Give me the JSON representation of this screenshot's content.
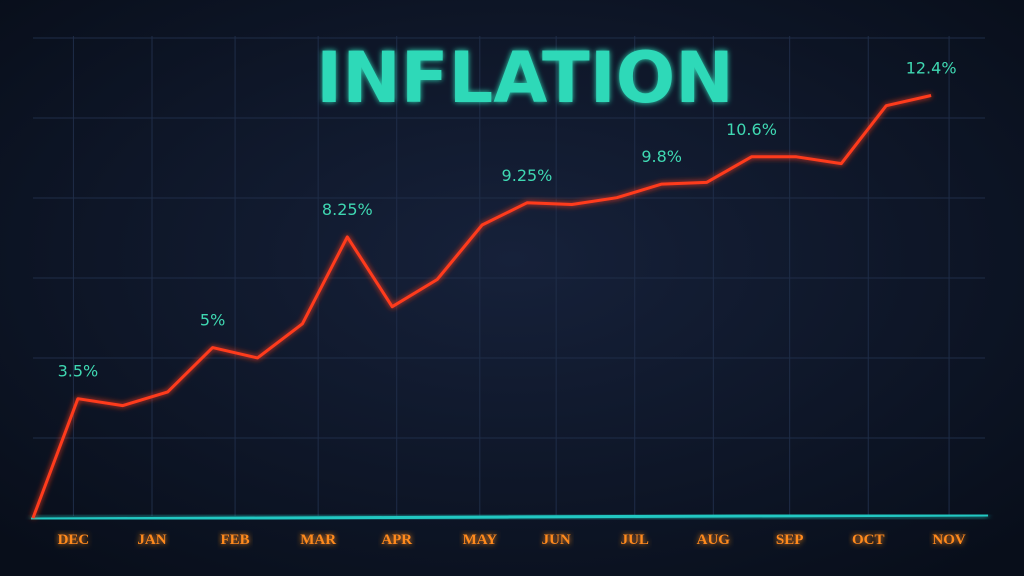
{
  "chart_data": {
    "type": "line",
    "title": "INFLATION",
    "x": [
      0,
      1,
      2,
      3,
      4,
      5,
      6,
      7,
      8,
      9,
      10,
      11,
      12,
      13,
      14,
      15,
      16,
      17,
      18,
      19,
      20
    ],
    "values": [
      0,
      3.5,
      3.3,
      3.7,
      5,
      4.7,
      5.7,
      8.25,
      6.2,
      7.0,
      8.6,
      9.25,
      9.2,
      9.4,
      9.8,
      9.85,
      10.6,
      10.6,
      10.4,
      12.1,
      12.4
    ],
    "value_labels": [
      null,
      "3.5%",
      null,
      null,
      "5%",
      null,
      null,
      "8.25%",
      null,
      null,
      null,
      "9.25%",
      null,
      null,
      "9.8%",
      null,
      "10.6%",
      null,
      null,
      null,
      "12.4%"
    ],
    "color": "#ff3b1c",
    "xlim": [
      0,
      21.2
    ],
    "xticks": [
      {
        "value": 0.9,
        "label": "DEC"
      },
      {
        "value": 2.65,
        "label": "JAN"
      },
      {
        "value": 4.5,
        "label": "FEB"
      },
      {
        "value": 6.35,
        "label": "MAR"
      },
      {
        "value": 8.1,
        "label": "APR"
      },
      {
        "value": 9.95,
        "label": "MAY"
      },
      {
        "value": 11.65,
        "label": "JUN"
      },
      {
        "value": 13.4,
        "label": "JUL"
      },
      {
        "value": 15.15,
        "label": "AUG"
      },
      {
        "value": 16.85,
        "label": "SEP"
      },
      {
        "value": 18.6,
        "label": "OCT"
      },
      {
        "value": 20.4,
        "label": "NOV"
      }
    ],
    "ylim": [
      0,
      13.5
    ],
    "grid": true
  }
}
